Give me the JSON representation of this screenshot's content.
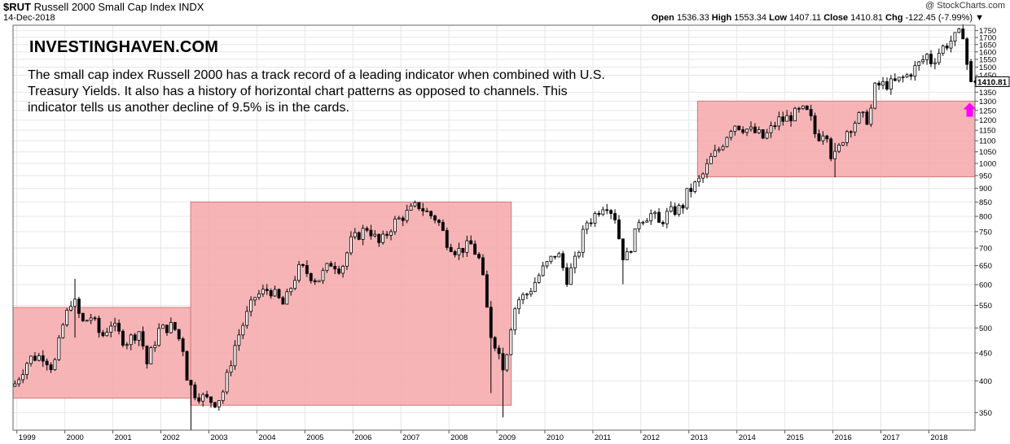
{
  "header": {
    "symbol": "$RUT",
    "name": "Russell 2000 Small Cap Index",
    "exchange": "INDX",
    "date": "14-Dec-2018",
    "brand": "@ StockCharts.com",
    "ohlc": {
      "open_label": "Open",
      "open": "1536.33",
      "high_label": "High",
      "high": "1553.34",
      "low_label": "Low",
      "low": "1407.11",
      "close_label": "Close",
      "close": "1410.81",
      "chg_label": "Chg",
      "chg": "-122.45 (-7.99%)",
      "chg_arrow": "▼"
    }
  },
  "annotation": {
    "brand": "INVESTINGHAVEN.COM",
    "text": "The small cap index Russell 2000 has a track record of a leading indicator when combined with U.S. Treasury Yields. It also has a history of horizontal chart patterns as opposed to channels. This indicator tells us another decline of 9.5% is in the cards."
  },
  "colors": {
    "zone_fill": "#f4a7a9",
    "zone_stroke": "#d47a7c",
    "up_candle": "#ffffff",
    "down_candle": "#000000",
    "last_price_label_bg": "#ffffff",
    "arrow": "#ff00ff"
  },
  "chart_data": {
    "type": "candlestick",
    "title": "$RUT Russell 2000 Small Cap Index INDX",
    "interval": "monthly",
    "yscale": "log",
    "ylim": [
      325,
      1790
    ],
    "x_start": 1998.92,
    "x_end": 2018.96,
    "xticks": [
      "1999",
      "2000",
      "2001",
      "2002",
      "2003",
      "2004",
      "2005",
      "2006",
      "2007",
      "2008",
      "2009",
      "2010",
      "2011",
      "2012",
      "2013",
      "2014",
      "2015",
      "2016",
      "2017",
      "2018"
    ],
    "yticks": [
      "350",
      "400",
      "450",
      "500",
      "550",
      "600",
      "650",
      "700",
      "750",
      "800",
      "850",
      "900",
      "950",
      "1000",
      "1050",
      "1100",
      "1150",
      "1200",
      "1250",
      "1300",
      "1350",
      "1450",
      "1500",
      "1550",
      "1600",
      "1650",
      "1700",
      "1750"
    ],
    "last_price_label": "1410.81",
    "shaded_ranges": [
      {
        "x": [
          1998.92,
          2002.62
        ],
        "y": [
          372,
          545
        ]
      },
      {
        "x": [
          2002.62,
          2009.3
        ],
        "y": [
          361,
          850
        ]
      },
      {
        "x": [
          2013.18,
          2018.96
        ],
        "y": [
          945,
          1300
        ]
      }
    ],
    "up_arrow": {
      "x": 2018.85,
      "y": 1260
    },
    "anchors": [
      [
        1999.0,
        395
      ],
      [
        1999.3,
        440
      ],
      [
        1999.6,
        445
      ],
      [
        1999.8,
        420
      ],
      [
        2000.0,
        505
      ],
      [
        2000.2,
        570
      ],
      [
        2000.4,
        510
      ],
      [
        2000.6,
        525
      ],
      [
        2000.8,
        480
      ],
      [
        2001.0,
        510
      ],
      [
        2001.3,
        470
      ],
      [
        2001.6,
        495
      ],
      [
        2001.75,
        430
      ],
      [
        2002.0,
        495
      ],
      [
        2002.3,
        505
      ],
      [
        2002.5,
        460
      ],
      [
        2002.6,
        400
      ],
      [
        2002.75,
        380
      ],
      [
        2003.0,
        370
      ],
      [
        2003.2,
        365
      ],
      [
        2003.35,
        385
      ],
      [
        2003.6,
        470
      ],
      [
        2003.8,
        520
      ],
      [
        2004.0,
        570
      ],
      [
        2004.3,
        590
      ],
      [
        2004.6,
        550
      ],
      [
        2004.9,
        640
      ],
      [
        2005.0,
        640
      ],
      [
        2005.3,
        610
      ],
      [
        2005.6,
        660
      ],
      [
        2005.8,
        640
      ],
      [
        2006.0,
        720
      ],
      [
        2006.35,
        765
      ],
      [
        2006.6,
        710
      ],
      [
        2006.9,
        780
      ],
      [
        2007.0,
        790
      ],
      [
        2007.4,
        840
      ],
      [
        2007.6,
        810
      ],
      [
        2007.8,
        790
      ],
      [
        2008.0,
        720
      ],
      [
        2008.2,
        690
      ],
      [
        2008.5,
        710
      ],
      [
        2008.7,
        660
      ],
      [
        2008.8,
        570
      ],
      [
        2008.9,
        490
      ],
      [
        2009.0,
        470
      ],
      [
        2009.2,
        420
      ],
      [
        2009.3,
        490
      ],
      [
        2009.45,
        560
      ],
      [
        2009.7,
        580
      ],
      [
        2009.9,
        620
      ],
      [
        2010.0,
        640
      ],
      [
        2010.3,
        690
      ],
      [
        2010.5,
        615
      ],
      [
        2010.7,
        670
      ],
      [
        2010.9,
        780
      ],
      [
        2011.0,
        790
      ],
      [
        2011.3,
        850
      ],
      [
        2011.5,
        800
      ],
      [
        2011.6,
        720
      ],
      [
        2011.7,
        660
      ],
      [
        2011.9,
        730
      ],
      [
        2012.0,
        790
      ],
      [
        2012.3,
        810
      ],
      [
        2012.4,
        770
      ],
      [
        2012.6,
        810
      ],
      [
        2012.9,
        830
      ],
      [
        2013.0,
        880
      ],
      [
        2013.3,
        940
      ],
      [
        2013.5,
        1020
      ],
      [
        2013.7,
        1070
      ],
      [
        2013.9,
        1160
      ],
      [
        2014.0,
        1180
      ],
      [
        2014.3,
        1150
      ],
      [
        2014.5,
        1130
      ],
      [
        2014.6,
        1110
      ],
      [
        2014.8,
        1170
      ],
      [
        2014.95,
        1210
      ],
      [
        2015.0,
        1200
      ],
      [
        2015.4,
        1250
      ],
      [
        2015.55,
        1230
      ],
      [
        2015.7,
        1110
      ],
      [
        2015.9,
        1160
      ],
      [
        2016.0,
        1040
      ],
      [
        2016.1,
        1030
      ],
      [
        2016.3,
        1140
      ],
      [
        2016.6,
        1220
      ],
      [
        2016.8,
        1200
      ],
      [
        2016.9,
        1370
      ],
      [
        2017.0,
        1390
      ],
      [
        2017.3,
        1400
      ],
      [
        2017.6,
        1450
      ],
      [
        2017.9,
        1540
      ],
      [
        2018.0,
        1580
      ],
      [
        2018.1,
        1530
      ],
      [
        2018.3,
        1620
      ],
      [
        2018.55,
        1690
      ],
      [
        2018.7,
        1730
      ],
      [
        2018.75,
        1740
      ],
      [
        2018.8,
        1510
      ],
      [
        2018.87,
        1530
      ],
      [
        2018.93,
        1411
      ]
    ],
    "extreme_wicks": [
      {
        "x": 2000.17,
        "high": 615,
        "low": 480
      },
      {
        "x": 2002.63,
        "high": 395,
        "low": 325
      },
      {
        "x": 2008.9,
        "high": 560,
        "low": 380
      },
      {
        "x": 2009.16,
        "high": 460,
        "low": 343
      },
      {
        "x": 2011.63,
        "high": 720,
        "low": 601
      },
      {
        "x": 2016.06,
        "high": 1090,
        "low": 943
      }
    ]
  }
}
